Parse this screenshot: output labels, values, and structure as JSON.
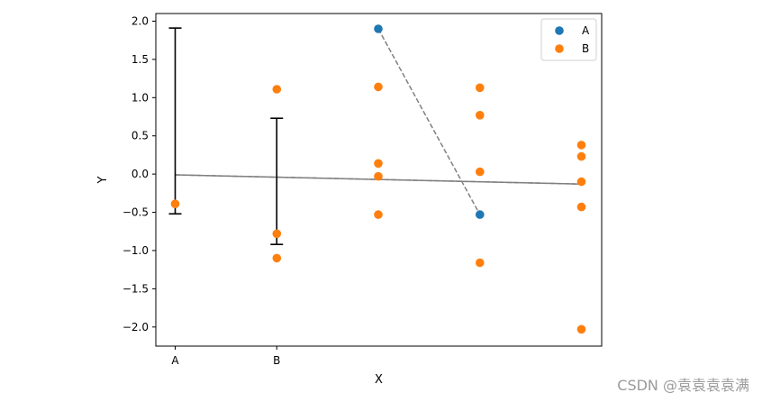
{
  "chart_data": {
    "type": "scatter",
    "xlabel": "X",
    "ylabel": "Y",
    "categories": [
      "A",
      "B"
    ],
    "x_tick_labels": [
      "A",
      "B"
    ],
    "ylim": [
      -2.25,
      2.1
    ],
    "y_ticks": [
      2.0,
      1.5,
      1.0,
      0.5,
      0.0,
      -0.5,
      -1.0,
      -1.5,
      -2.0
    ],
    "y_tick_labels": [
      "2.0",
      "1.5",
      "1.0",
      "0.5",
      "0.0",
      "−0.5",
      "−1.0",
      "−1.5",
      "−2.0"
    ],
    "legend": {
      "placement": "top-right",
      "entries": [
        "A",
        "B"
      ]
    },
    "colors": {
      "A": "#1f77b4",
      "B": "#ff7f0e",
      "trend": "#808080",
      "errorbar": "#000000"
    },
    "series": [
      {
        "name": "A",
        "points": [
          {
            "x": 3,
            "y": 1.9
          },
          {
            "x": 4,
            "y": -0.53
          }
        ]
      },
      {
        "name": "B",
        "points": [
          {
            "x": 1,
            "y": -0.39
          },
          {
            "x": 2,
            "y": 1.11
          },
          {
            "x": 2,
            "y": -0.78
          },
          {
            "x": 2,
            "y": -1.1
          },
          {
            "x": 3,
            "y": 1.14
          },
          {
            "x": 3,
            "y": 0.14
          },
          {
            "x": 3,
            "y": -0.03
          },
          {
            "x": 3,
            "y": -0.53
          },
          {
            "x": 4,
            "y": 1.13
          },
          {
            "x": 4,
            "y": 0.77
          },
          {
            "x": 4,
            "y": 0.03
          },
          {
            "x": 4,
            "y": -1.16
          },
          {
            "x": 5,
            "y": 0.38
          },
          {
            "x": 5,
            "y": 0.23
          },
          {
            "x": 5,
            "y": -0.1
          },
          {
            "x": 5,
            "y": -0.43
          },
          {
            "x": 5,
            "y": -2.03
          }
        ]
      }
    ],
    "error_bars": [
      {
        "x": 1,
        "low": -0.52,
        "high": 1.91
      },
      {
        "x": 2,
        "low": -0.92,
        "high": 0.73
      }
    ],
    "trend_lines": [
      {
        "style": "dashed",
        "points": [
          {
            "x": 1,
            "y": -0.01
          },
          {
            "x": 5,
            "y": -0.13
          }
        ]
      },
      {
        "style": "solid",
        "points": [
          {
            "x": 1,
            "y": -0.01
          },
          {
            "x": 5,
            "y": -0.13
          }
        ]
      },
      {
        "style": "dashed",
        "points": [
          {
            "x": 3,
            "y": 1.9
          },
          {
            "x": 4,
            "y": -0.53
          }
        ]
      }
    ]
  },
  "watermark": "CSDN @袁袁袁袁满"
}
